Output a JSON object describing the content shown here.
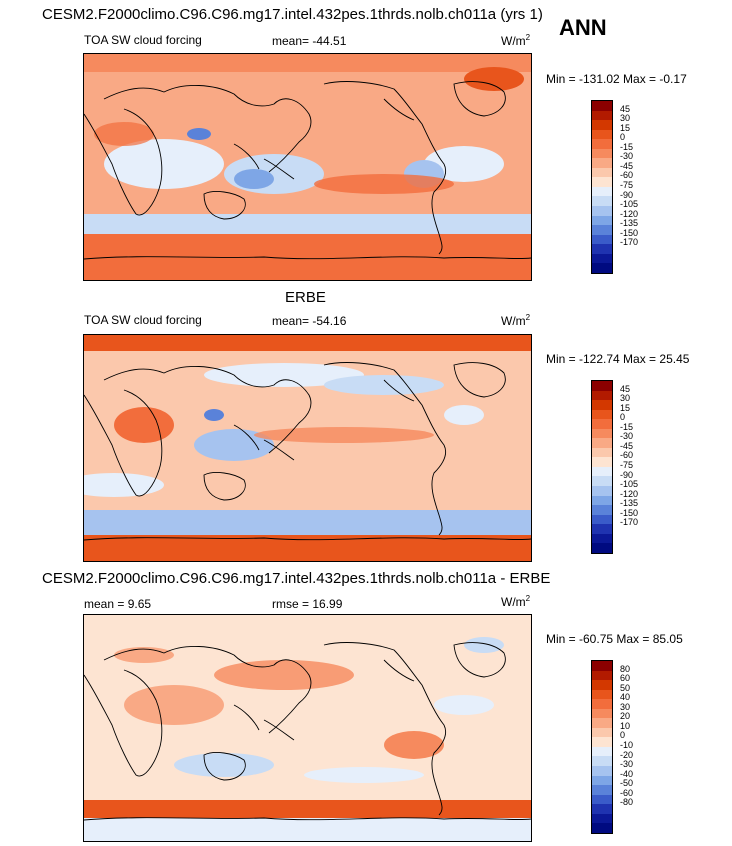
{
  "header": {
    "run_title": "CESM2.F2000climo.C96.C96.mg17.intel.432pes.1thrds.nolb.ch011a (yrs 1)",
    "season": "ANN"
  },
  "panels": [
    {
      "title": "",
      "left_label": "TOA SW cloud forcing",
      "center_label": "mean= -44.51",
      "unit_base": "W/m",
      "unit_exp": "2",
      "minmax": "Min = -131.02 Max =  -0.17",
      "colorbar_labels": [
        "45",
        "30",
        "15",
        "0",
        "-15",
        "-30",
        "-45",
        "-60",
        "-75",
        "-90",
        "-105",
        "-120",
        "-135",
        "-150",
        "-170"
      ],
      "colorbar_colors": [
        "#8b0000",
        "#b21a00",
        "#d33800",
        "#e8551c",
        "#f26d3c",
        "#f68a5e",
        "#f9a985",
        "#fbc8ac",
        "#fde4d2",
        "#e6effb",
        "#c8dcf5",
        "#a6c3ef",
        "#7ea6e6",
        "#5a82d9",
        "#3a5bc9",
        "#1f33b0",
        "#0b1896",
        "#000a80"
      ]
    },
    {
      "title": "ERBE",
      "left_label": "TOA SW cloud forcing",
      "center_label": "mean= -54.16",
      "unit_base": "W/m",
      "unit_exp": "2",
      "minmax": "Min = -122.74 Max =  25.45",
      "colorbar_labels": [
        "45",
        "30",
        "15",
        "0",
        "-15",
        "-30",
        "-45",
        "-60",
        "-75",
        "-90",
        "-105",
        "-120",
        "-135",
        "-150",
        "-170"
      ],
      "colorbar_colors": [
        "#8b0000",
        "#b21a00",
        "#d33800",
        "#e8551c",
        "#f26d3c",
        "#f68a5e",
        "#f9a985",
        "#fbc8ac",
        "#fde4d2",
        "#e6effb",
        "#c8dcf5",
        "#a6c3ef",
        "#7ea6e6",
        "#5a82d9",
        "#3a5bc9",
        "#1f33b0",
        "#0b1896",
        "#000a80"
      ]
    },
    {
      "title": "CESM2.F2000climo.C96.C96.mg17.intel.432pes.1thrds.nolb.ch011a - ERBE",
      "left_label": "mean =   9.65",
      "center_label": "rmse =  16.99",
      "unit_base": "W/m",
      "unit_exp": "2",
      "minmax": "Min = -60.75 Max =  85.05",
      "colorbar_labels": [
        "80",
        "60",
        "50",
        "40",
        "30",
        "20",
        "10",
        "0",
        "-10",
        "-20",
        "-30",
        "-40",
        "-50",
        "-60",
        "-80"
      ],
      "colorbar_colors": [
        "#8b0000",
        "#b21a00",
        "#d33800",
        "#e8551c",
        "#f26d3c",
        "#f68a5e",
        "#f9a985",
        "#fbc8ac",
        "#fde4d2",
        "#e6effb",
        "#c8dcf5",
        "#a6c3ef",
        "#7ea6e6",
        "#5a82d9",
        "#3a5bc9",
        "#1f33b0",
        "#0b1896",
        "#000a80"
      ]
    }
  ]
}
